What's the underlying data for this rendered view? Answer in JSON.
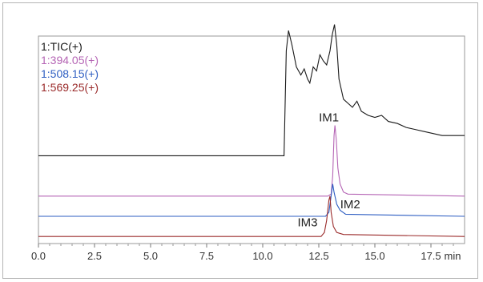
{
  "chart_data": {
    "type": "line",
    "title": "",
    "xlabel": "",
    "ylabel": "",
    "x_unit": "min",
    "xlim": [
      0,
      19.0
    ],
    "x_ticks": [
      "0.0",
      "2.5",
      "5.0",
      "7.5",
      "10.0",
      "12.5",
      "15.0",
      "17.5"
    ],
    "x_tick_values": [
      0,
      2.5,
      5.0,
      7.5,
      10.0,
      12.5,
      15.0,
      17.5
    ],
    "grid": false,
    "legend_position": "top-left",
    "series": [
      {
        "name": "1:TIC(+)",
        "color": "#1a1a1a",
        "baseline_offset": 0.3,
        "points": [
          [
            0,
            0
          ],
          [
            10.8,
            0
          ],
          [
            10.95,
            0.0
          ],
          [
            11.05,
            0.52
          ],
          [
            11.15,
            0.62
          ],
          [
            11.3,
            0.55
          ],
          [
            11.5,
            0.44
          ],
          [
            11.7,
            0.4
          ],
          [
            11.85,
            0.43
          ],
          [
            12.0,
            0.38
          ],
          [
            12.1,
            0.36
          ],
          [
            12.25,
            0.44
          ],
          [
            12.4,
            0.42
          ],
          [
            12.55,
            0.5
          ],
          [
            12.7,
            0.47
          ],
          [
            12.85,
            0.45
          ],
          [
            13.0,
            0.52
          ],
          [
            13.1,
            0.6
          ],
          [
            13.2,
            0.65
          ],
          [
            13.3,
            0.55
          ],
          [
            13.4,
            0.38
          ],
          [
            13.6,
            0.28
          ],
          [
            13.8,
            0.26
          ],
          [
            14.0,
            0.24
          ],
          [
            14.2,
            0.27
          ],
          [
            14.4,
            0.22
          ],
          [
            14.7,
            0.2
          ],
          [
            15.0,
            0.19
          ],
          [
            15.3,
            0.2
          ],
          [
            15.6,
            0.17
          ],
          [
            16.0,
            0.16
          ],
          [
            16.4,
            0.14
          ],
          [
            16.8,
            0.13
          ],
          [
            17.2,
            0.12
          ],
          [
            17.6,
            0.11
          ],
          [
            18.0,
            0.1
          ],
          [
            18.5,
            0.1
          ],
          [
            19.0,
            0.1
          ]
        ]
      },
      {
        "name": "1:394.05(+)",
        "color": "#b565b5",
        "baseline_offset": 0.1,
        "points": [
          [
            0,
            0
          ],
          [
            12.9,
            0
          ],
          [
            13.05,
            0.01
          ],
          [
            13.12,
            0.1
          ],
          [
            13.18,
            0.3
          ],
          [
            13.22,
            0.35
          ],
          [
            13.28,
            0.28
          ],
          [
            13.35,
            0.14
          ],
          [
            13.45,
            0.06
          ],
          [
            13.6,
            0.02
          ],
          [
            13.8,
            0.01
          ],
          [
            19.0,
            0
          ]
        ]
      },
      {
        "name": "1:508.15(+)",
        "color": "#2e5ec2",
        "baseline_offset": 0.0,
        "points": [
          [
            0,
            0
          ],
          [
            12.8,
            0
          ],
          [
            12.95,
            0.02
          ],
          [
            13.05,
            0.1
          ],
          [
            13.12,
            0.16
          ],
          [
            13.18,
            0.12
          ],
          [
            13.3,
            0.06
          ],
          [
            13.45,
            0.03
          ],
          [
            13.7,
            0.01
          ],
          [
            19.0,
            0
          ]
        ]
      },
      {
        "name": "1:569.25(+)",
        "color": "#9a2a2a",
        "baseline_offset": -0.1,
        "points": [
          [
            0,
            0
          ],
          [
            12.6,
            0
          ],
          [
            12.75,
            0.02
          ],
          [
            12.85,
            0.08
          ],
          [
            12.95,
            0.18
          ],
          [
            13.0,
            0.2
          ],
          [
            13.05,
            0.12
          ],
          [
            13.15,
            0.05
          ],
          [
            13.3,
            0.02
          ],
          [
            13.6,
            0.01
          ],
          [
            19.0,
            0
          ]
        ]
      }
    ],
    "annotations": [
      {
        "label": "IM1",
        "x": 12.95,
        "y": 0.47
      },
      {
        "label": "IM2",
        "x": 13.9,
        "y": 0.04
      },
      {
        "label": "IM3",
        "x": 12.0,
        "y": -0.05
      }
    ]
  }
}
